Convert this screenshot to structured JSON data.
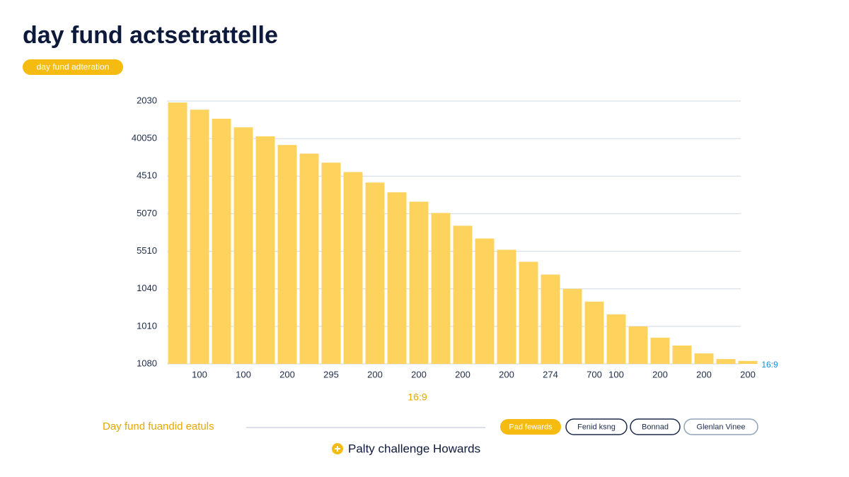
{
  "chart_data": {
    "type": "bar",
    "title": "day fund actsetrattelle",
    "subtitle": "day fund adteration",
    "categories": [
      null,
      "100",
      null,
      "100",
      null,
      "200",
      null,
      "295",
      null,
      "200",
      null,
      "200",
      null,
      "200",
      null,
      "200",
      null,
      "274",
      null,
      "700",
      "100",
      null,
      "200",
      null,
      "200",
      null,
      "200"
    ],
    "values": [
      6.96,
      6.77,
      6.53,
      6.3,
      6.06,
      5.83,
      5.6,
      5.36,
      5.11,
      4.83,
      4.57,
      4.32,
      4.02,
      3.68,
      3.34,
      3.04,
      2.72,
      2.38,
      2.0,
      1.66,
      1.32,
      1.0,
      0.7,
      0.49,
      0.28,
      0.13,
      0.08
    ],
    "color": "#fdd35e",
    "ylim": [
      0,
      7
    ],
    "yticks": [
      {
        "value": 0,
        "label": "1080"
      },
      {
        "value": 1,
        "label": "1010"
      },
      {
        "value": 2,
        "label": "1040"
      },
      {
        "value": 3,
        "label": "5510"
      },
      {
        "value": 4,
        "label": "5070"
      },
      {
        "value": 5,
        "label": "4510"
      },
      {
        "value": 6,
        "label": "40050"
      },
      {
        "value": 7,
        "label": "2030"
      }
    ],
    "grid": true,
    "xlabel": "16:9",
    "annotation": "16:9"
  },
  "footer": {
    "label": "Day fund fuandid eatuls",
    "buttons": [
      "Pad fewards",
      "Fenid ksng",
      "Bonnad",
      "Glenlan Vinee"
    ],
    "action": "Palty challenge Howards"
  }
}
